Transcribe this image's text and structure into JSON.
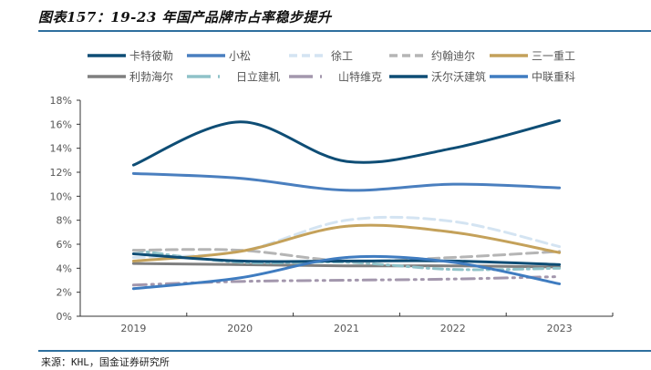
{
  "title": "图表157：19-23 年国产品牌市占率稳步提升",
  "source": "来源：KHL，国金证券研究所",
  "chart_data": {
    "type": "line",
    "title": "图表157：19-23 年国产品牌市占率稳步提升",
    "xlabel": "",
    "ylabel": "",
    "categories": [
      "2019",
      "2020",
      "2021",
      "2022",
      "2023"
    ],
    "y_ticks": [
      "0%",
      "2%",
      "4%",
      "6%",
      "8%",
      "10%",
      "12%",
      "14%",
      "16%",
      "18%"
    ],
    "ylim": [
      0,
      18
    ],
    "y_unit": "%",
    "grid": false,
    "legend_position": "top",
    "series": [
      {
        "name": "卡特彼勒",
        "color": "#0e4d75",
        "style": "solid",
        "values": [
          12.6,
          16.2,
          12.9,
          14.0,
          16.3
        ]
      },
      {
        "name": "小松",
        "color": "#4a7fbf",
        "style": "solid",
        "values": [
          11.9,
          11.5,
          10.5,
          11.0,
          10.7
        ]
      },
      {
        "name": "徐工",
        "color": "#d4e4f2",
        "style": "dash",
        "values": [
          4.9,
          5.4,
          8.0,
          7.9,
          5.8
        ]
      },
      {
        "name": "约翰迪尔",
        "color": "#b5b5b5",
        "style": "dash",
        "values": [
          5.5,
          5.5,
          4.6,
          4.9,
          5.4
        ]
      },
      {
        "name": "三一重工",
        "color": "#c4a15a",
        "style": "solid",
        "values": [
          4.6,
          5.4,
          7.5,
          7.0,
          5.3
        ]
      },
      {
        "name": "利勃海尔",
        "color": "#7f7f7f",
        "style": "solid",
        "values": [
          4.4,
          4.3,
          4.2,
          4.2,
          4.1
        ]
      },
      {
        "name": "日立建机",
        "color": "#8fc2c8",
        "style": "dashdot",
        "values": [
          5.5,
          4.5,
          4.5,
          3.9,
          4.0
        ]
      },
      {
        "name": "山特维克",
        "color": "#a397ad",
        "style": "dashdotdot",
        "values": [
          2.6,
          2.9,
          3.0,
          3.1,
          3.3
        ]
      },
      {
        "name": "沃尔沃建筑",
        "color": "#0e4d75",
        "style": "solid",
        "values": [
          5.2,
          4.6,
          4.6,
          4.6,
          4.3
        ]
      },
      {
        "name": "中联重科",
        "color": "#3f7cc0",
        "style": "solid",
        "values": [
          2.3,
          3.2,
          4.9,
          4.5,
          2.7
        ]
      }
    ]
  }
}
